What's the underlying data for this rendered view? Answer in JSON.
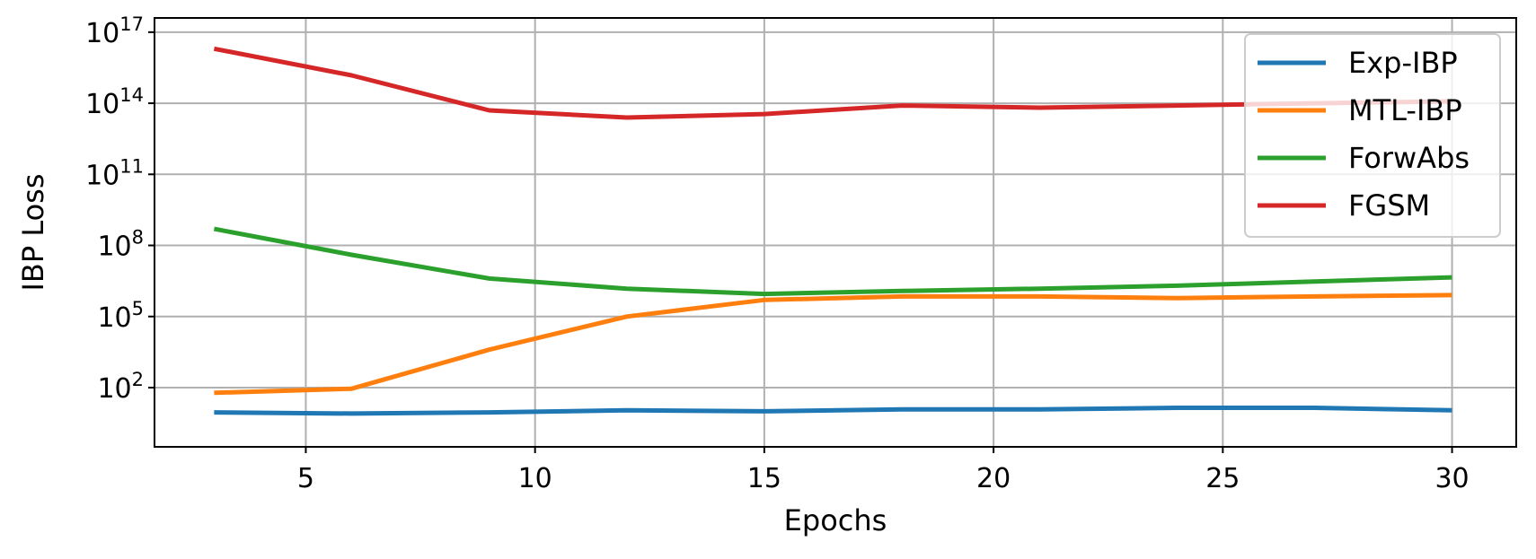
{
  "chart_data": {
    "type": "line",
    "title": "",
    "xlabel": "Epochs",
    "ylabel": "IBP Loss",
    "x_scale": "linear",
    "y_scale": "log",
    "xlim": [
      1.7,
      31.4
    ],
    "ylim_log10": [
      -0.5,
      17.6
    ],
    "x_ticks": [
      5,
      10,
      15,
      20,
      25,
      30
    ],
    "y_ticks": [
      {
        "base": "10",
        "exp": "2",
        "value": 100
      },
      {
        "base": "10",
        "exp": "5",
        "value": 100000
      },
      {
        "base": "10",
        "exp": "8",
        "value": 100000000
      },
      {
        "base": "10",
        "exp": "11",
        "value": 100000000000
      },
      {
        "base": "10",
        "exp": "14",
        "value": 100000000000000
      },
      {
        "base": "10",
        "exp": "17",
        "value": 100000000000000000
      }
    ],
    "grid": true,
    "legend_position": "top-right",
    "x": [
      3,
      6,
      9,
      12,
      15,
      18,
      21,
      24,
      27,
      30
    ],
    "series": [
      {
        "name": "Exp-IBP",
        "color": "#1f77b4",
        "values": [
          9,
          8,
          9,
          11,
          10,
          12,
          12,
          14,
          14,
          11
        ]
      },
      {
        "name": "MTL-IBP",
        "color": "#ff7f0e",
        "values": [
          60,
          90,
          4000,
          100000,
          500000,
          700000,
          700000,
          600000,
          700000,
          800000
        ]
      },
      {
        "name": "ForwAbs",
        "color": "#2ca02c",
        "values": [
          500000000,
          40000000,
          4000000,
          1500000,
          900000,
          1200000,
          1500000,
          2000000,
          3000000,
          4500000
        ]
      },
      {
        "name": "FGSM",
        "color": "#d62728",
        "values": [
          2e+16,
          1500000000000000.0,
          50000000000000.0,
          25000000000000.0,
          35000000000000.0,
          80000000000000.0,
          65000000000000.0,
          80000000000000.0,
          100000000000000.0,
          120000000000000.0
        ]
      }
    ]
  }
}
